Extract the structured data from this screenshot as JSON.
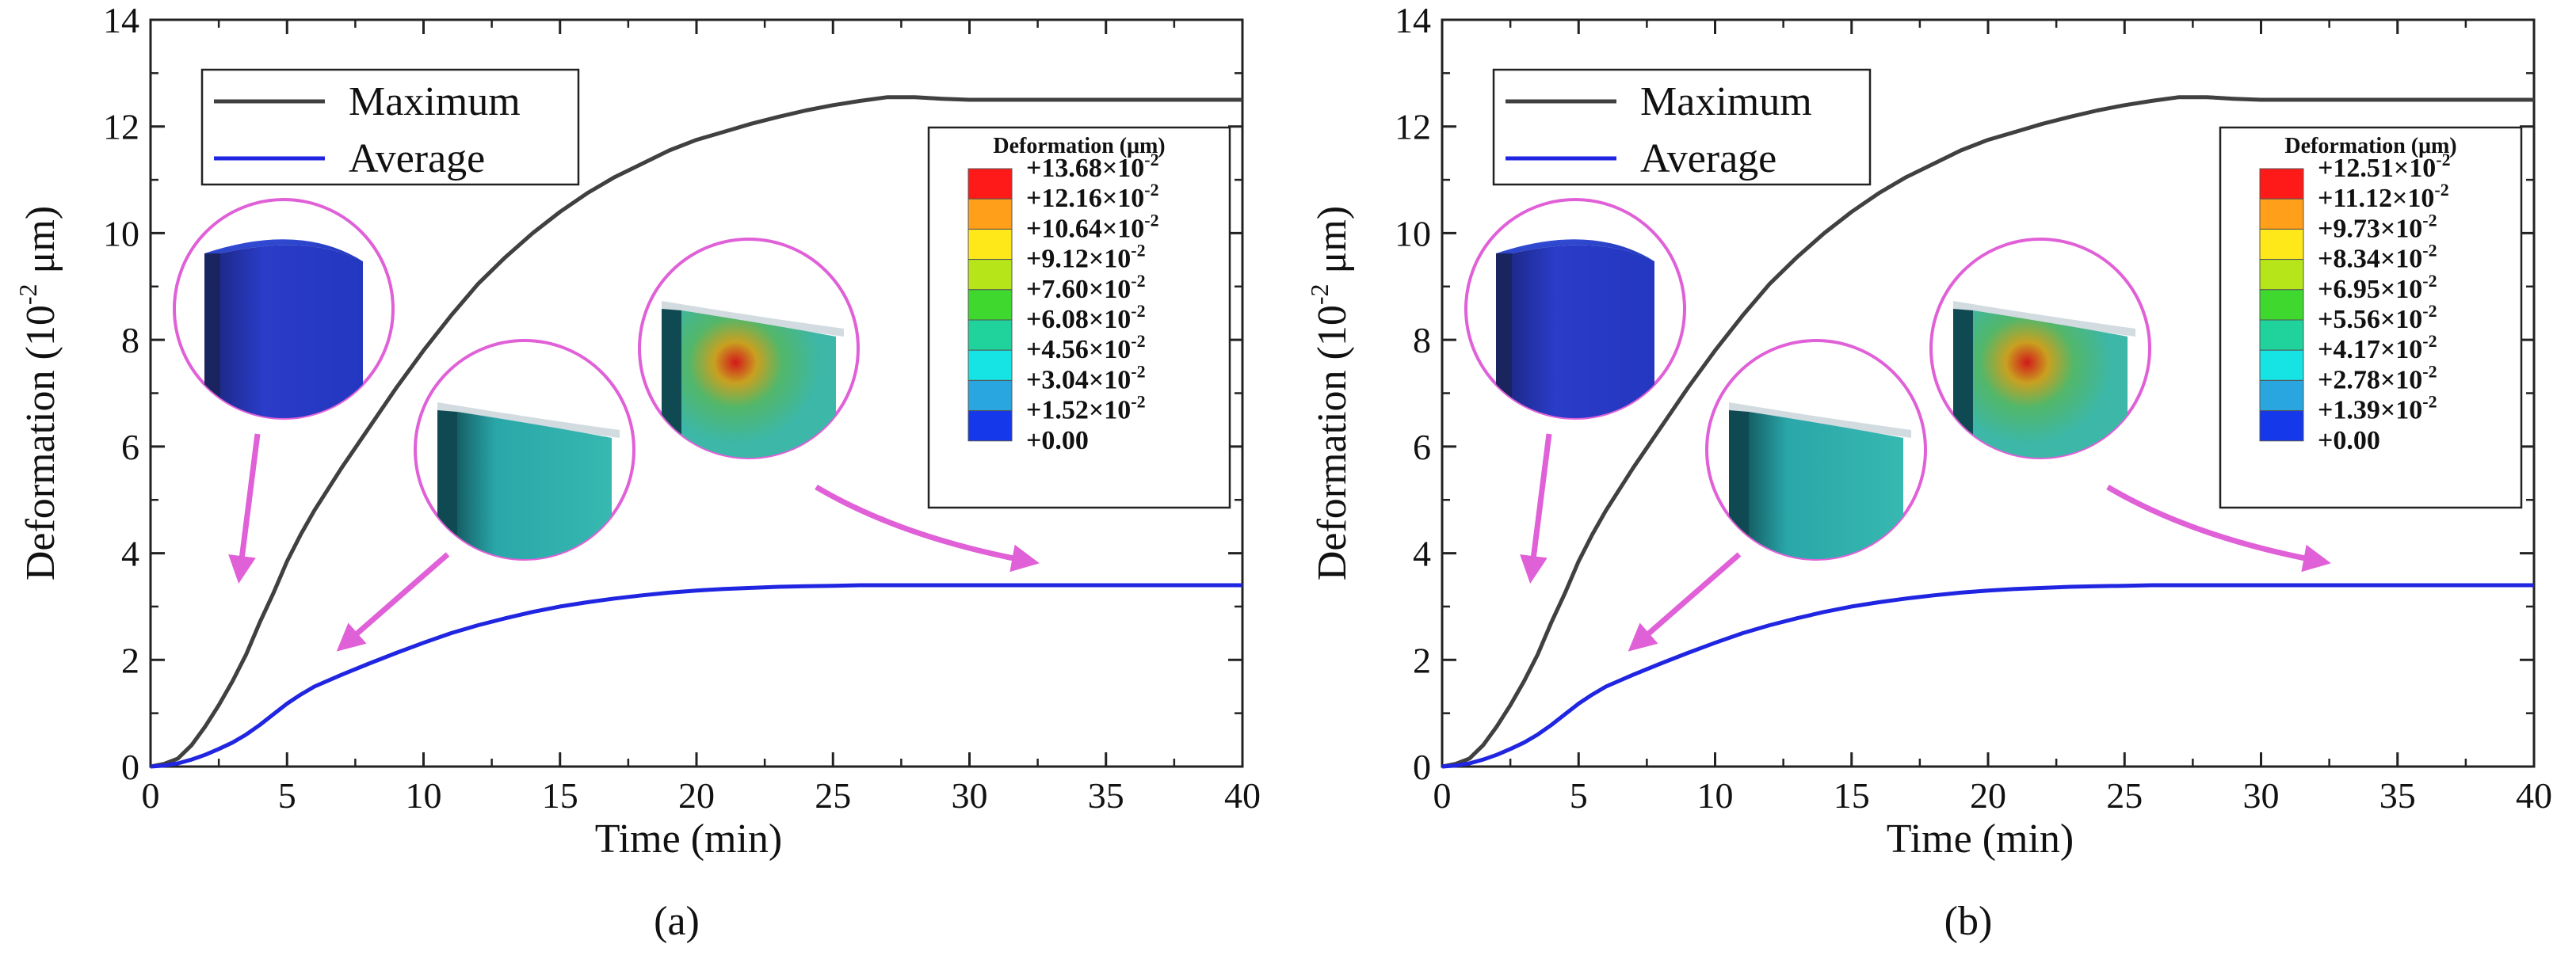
{
  "chart_data": [
    {
      "type": "line",
      "panel_label": "(a)",
      "xlabel": "Time (min)",
      "ylabel": {
        "main": "Deformation (10",
        "sup": "-2",
        "tail": " μm)"
      },
      "xlim": [
        0,
        40
      ],
      "ylim": [
        0,
        14
      ],
      "xticks": [
        0,
        5,
        10,
        15,
        20,
        25,
        30,
        35,
        40
      ],
      "yticks": [
        0,
        2,
        4,
        6,
        8,
        10,
        12,
        14
      ],
      "series": [
        {
          "name": "Maximum",
          "color": "#404040",
          "x": [
            0,
            0.5,
            1,
            1.5,
            2,
            2.5,
            3,
            3.5,
            4,
            4.5,
            5,
            5.5,
            6,
            7,
            8,
            9,
            10,
            11,
            12,
            13,
            14,
            15,
            16,
            17,
            18,
            19,
            20,
            21,
            22,
            23,
            24,
            25,
            26,
            27,
            28,
            29,
            30,
            32,
            35,
            38,
            40
          ],
          "y": [
            0,
            0.05,
            0.15,
            0.4,
            0.75,
            1.15,
            1.6,
            2.1,
            2.7,
            3.25,
            3.85,
            4.35,
            4.8,
            5.6,
            6.35,
            7.1,
            7.8,
            8.45,
            9.05,
            9.55,
            10.0,
            10.4,
            10.75,
            11.05,
            11.3,
            11.55,
            11.75,
            11.9,
            12.05,
            12.18,
            12.3,
            12.4,
            12.48,
            12.55,
            12.55,
            12.52,
            12.5,
            12.5,
            12.5,
            12.5,
            12.5
          ]
        },
        {
          "name": "Average",
          "color": "#1f25e0",
          "x": [
            0,
            0.5,
            1,
            1.5,
            2,
            2.5,
            3,
            3.5,
            4,
            4.5,
            5,
            5.5,
            6,
            7,
            8,
            9,
            10,
            11,
            12,
            13,
            14,
            15,
            16,
            17,
            18,
            19,
            20,
            21,
            22,
            23,
            24,
            25,
            26,
            28,
            30,
            35,
            40
          ],
          "y": [
            0,
            0.02,
            0.06,
            0.13,
            0.22,
            0.33,
            0.45,
            0.6,
            0.78,
            0.98,
            1.18,
            1.35,
            1.5,
            1.72,
            1.93,
            2.13,
            2.32,
            2.5,
            2.65,
            2.78,
            2.9,
            3.0,
            3.08,
            3.15,
            3.21,
            3.26,
            3.3,
            3.33,
            3.35,
            3.37,
            3.38,
            3.39,
            3.4,
            3.4,
            3.4,
            3.4,
            3.4
          ]
        }
      ],
      "legend": {
        "placement": "top-left",
        "entries": [
          "Maximum",
          "Average"
        ]
      },
      "colorbar": {
        "title": "Deformation (μm)",
        "labels": [
          {
            "mant": "+13.68×10",
            "exp": "-2"
          },
          {
            "mant": "+12.16×10",
            "exp": "-2"
          },
          {
            "mant": "+10.64×10",
            "exp": "-2"
          },
          {
            "mant": "+9.12×10",
            "exp": "-2"
          },
          {
            "mant": "+7.60×10",
            "exp": "-2"
          },
          {
            "mant": "+6.08×10",
            "exp": "-2"
          },
          {
            "mant": "+4.56×10",
            "exp": "-2"
          },
          {
            "mant": "+3.04×10",
            "exp": "-2"
          },
          {
            "mant": "+1.52×10",
            "exp": "-2"
          },
          {
            "mant": "+0.00",
            "exp": ""
          }
        ],
        "colors": [
          "#ff1a1a",
          "#ff9f1a",
          "#ffe81a",
          "#b6e61a",
          "#3fd82e",
          "#20d39c",
          "#16e3e3",
          "#29a6df",
          "#1438ea"
        ]
      }
    },
    {
      "type": "line",
      "panel_label": "(b)",
      "xlabel": "Time (min)",
      "ylabel": {
        "main": "Deformation (10",
        "sup": "-2",
        "tail": " μm)"
      },
      "xlim": [
        0,
        40
      ],
      "ylim": [
        0,
        14
      ],
      "xticks": [
        0,
        5,
        10,
        15,
        20,
        25,
        30,
        35,
        40
      ],
      "yticks": [
        0,
        2,
        4,
        6,
        8,
        10,
        12,
        14
      ],
      "series": [
        {
          "name": "Maximum",
          "color": "#404040",
          "x": [
            0,
            0.5,
            1,
            1.5,
            2,
            2.5,
            3,
            3.5,
            4,
            4.5,
            5,
            5.5,
            6,
            7,
            8,
            9,
            10,
            11,
            12,
            13,
            14,
            15,
            16,
            17,
            18,
            19,
            20,
            21,
            22,
            23,
            24,
            25,
            26,
            27,
            28,
            29,
            30,
            32,
            35,
            38,
            40
          ],
          "y": [
            0,
            0.05,
            0.15,
            0.4,
            0.75,
            1.15,
            1.6,
            2.1,
            2.7,
            3.25,
            3.85,
            4.35,
            4.8,
            5.6,
            6.35,
            7.1,
            7.8,
            8.45,
            9.05,
            9.55,
            10.0,
            10.4,
            10.75,
            11.05,
            11.3,
            11.55,
            11.75,
            11.9,
            12.05,
            12.18,
            12.3,
            12.4,
            12.48,
            12.55,
            12.55,
            12.52,
            12.5,
            12.5,
            12.5,
            12.5,
            12.5
          ]
        },
        {
          "name": "Average",
          "color": "#1f25e0",
          "x": [
            0,
            0.5,
            1,
            1.5,
            2,
            2.5,
            3,
            3.5,
            4,
            4.5,
            5,
            5.5,
            6,
            7,
            8,
            9,
            10,
            11,
            12,
            13,
            14,
            15,
            16,
            17,
            18,
            19,
            20,
            21,
            22,
            23,
            24,
            25,
            26,
            28,
            30,
            35,
            40
          ],
          "y": [
            0,
            0.02,
            0.06,
            0.13,
            0.22,
            0.33,
            0.45,
            0.6,
            0.78,
            0.98,
            1.18,
            1.35,
            1.5,
            1.72,
            1.93,
            2.13,
            2.32,
            2.5,
            2.65,
            2.78,
            2.9,
            3.0,
            3.08,
            3.15,
            3.21,
            3.26,
            3.3,
            3.33,
            3.35,
            3.37,
            3.38,
            3.39,
            3.4,
            3.4,
            3.4,
            3.4,
            3.4
          ]
        }
      ],
      "legend": {
        "placement": "top-left",
        "entries": [
          "Maximum",
          "Average"
        ]
      },
      "colorbar": {
        "title": "Deformation (μm)",
        "labels": [
          {
            "mant": "+12.51×10",
            "exp": "-2"
          },
          {
            "mant": "+11.12×10",
            "exp": "-2"
          },
          {
            "mant": "+9.73×10",
            "exp": "-2"
          },
          {
            "mant": "+8.34×10",
            "exp": "-2"
          },
          {
            "mant": "+6.95×10",
            "exp": "-2"
          },
          {
            "mant": "+5.56×10",
            "exp": "-2"
          },
          {
            "mant": "+4.17×10",
            "exp": "-2"
          },
          {
            "mant": "+2.78×10",
            "exp": "-2"
          },
          {
            "mant": "+1.39×10",
            "exp": "-2"
          },
          {
            "mant": "+0.00",
            "exp": ""
          }
        ],
        "colors": [
          "#ff1a1a",
          "#ff9f1a",
          "#ffe81a",
          "#b6e61a",
          "#3fd82e",
          "#20d39c",
          "#16e3e3",
          "#29a6df",
          "#1438ea"
        ]
      }
    }
  ]
}
